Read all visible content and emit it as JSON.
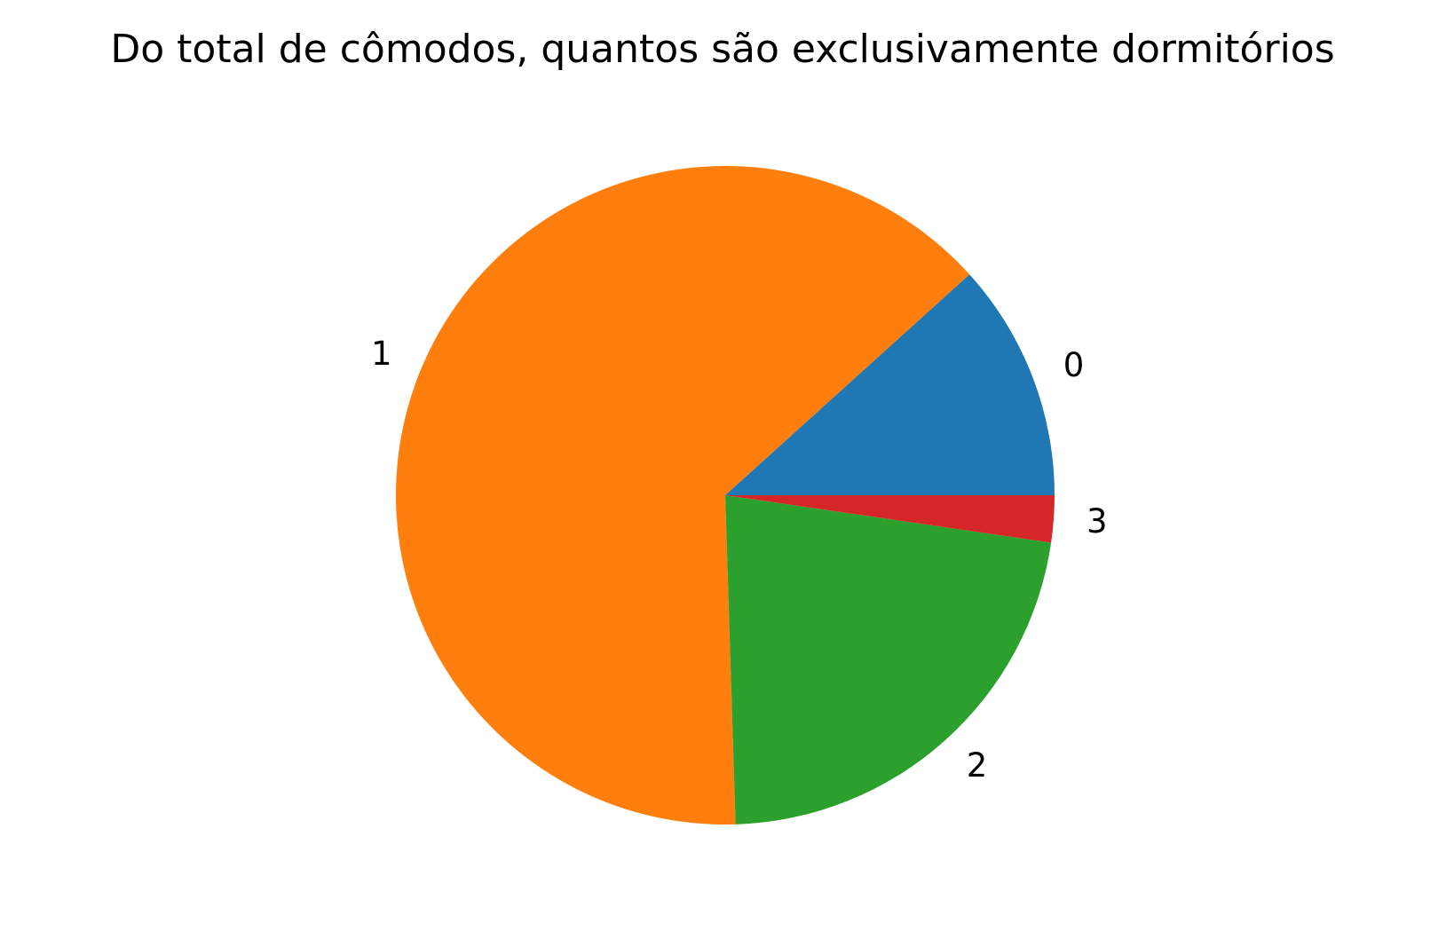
{
  "chart_data": {
    "type": "pie",
    "title": "Do total de cômodos, quantos são exclusivamente dormitórios",
    "categories": [
      "0",
      "1",
      "2",
      "3"
    ],
    "values": [
      11.7,
      63.8,
      22.2,
      2.3
    ],
    "colors": [
      "#1f77b4",
      "#ff7f0e",
      "#2ca02c",
      "#d62728"
    ],
    "start_angle_deg": 0,
    "direction": "counterclockwise",
    "legend": "none"
  }
}
